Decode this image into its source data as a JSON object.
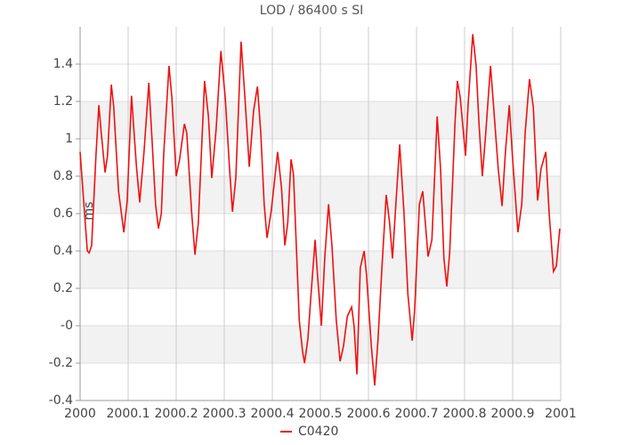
{
  "chart_data": {
    "type": "line",
    "title": "LOD / 86400 s SI",
    "y_label": "ms",
    "x": [
      2000.0,
      2000.015,
      2000.019,
      2000.024,
      2000.033,
      2000.039,
      2000.044,
      2000.052,
      2000.057,
      2000.065,
      2000.07,
      2000.08,
      2000.091,
      2000.098,
      2000.107,
      2000.117,
      2000.124,
      2000.133,
      2000.143,
      2000.15,
      2000.157,
      2000.163,
      2000.169,
      2000.174,
      2000.185,
      2000.191,
      2000.2,
      2000.207,
      2000.217,
      2000.222,
      2000.232,
      2000.239,
      2000.246,
      2000.259,
      2000.267,
      2000.274,
      2000.283,
      2000.293,
      2000.302,
      2000.311,
      2000.317,
      2000.324,
      2000.335,
      2000.343,
      2000.352,
      2000.361,
      2000.369,
      2000.376,
      2000.383,
      2000.389,
      2000.398,
      2000.411,
      2000.419,
      2000.426,
      2000.432,
      2000.439,
      2000.444,
      2000.456,
      2000.463,
      2000.467,
      2000.474,
      2000.48,
      2000.489,
      2000.494,
      2000.502,
      2000.509,
      2000.517,
      2000.524,
      2000.533,
      2000.541,
      2000.548,
      2000.556,
      2000.565,
      2000.57,
      2000.576,
      2000.583,
      2000.591,
      2000.596,
      2000.606,
      2000.613,
      2000.62,
      2000.628,
      2000.637,
      2000.644,
      2000.65,
      2000.657,
      2000.665,
      2000.674,
      2000.682,
      2000.691,
      2000.696,
      2000.706,
      2000.713,
      2000.719,
      2000.724,
      2000.732,
      2000.743,
      2000.75,
      2000.757,
      2000.763,
      2000.769,
      2000.78,
      2000.785,
      2000.791,
      2000.802,
      2000.807,
      2000.817,
      2000.824,
      2000.83,
      2000.837,
      2000.844,
      2000.854,
      2000.859,
      2000.87,
      2000.878,
      2000.885,
      2000.893,
      2000.9,
      2000.911,
      2000.919,
      2000.926,
      2000.935,
      2000.943,
      2000.952,
      2000.959,
      2000.969,
      2000.976,
      2000.985,
      2000.991,
      2000.998
    ],
    "series": [
      {
        "name": "C0420",
        "color": "#ee1111",
        "values": [
          0.93,
          0.4,
          0.39,
          0.43,
          0.91,
          1.18,
          1.03,
          0.82,
          0.91,
          1.29,
          1.17,
          0.72,
          0.5,
          0.67,
          1.23,
          0.86,
          0.66,
          0.93,
          1.3,
          0.98,
          0.65,
          0.52,
          0.6,
          0.92,
          1.39,
          1.22,
          0.8,
          0.89,
          1.08,
          1.03,
          0.61,
          0.38,
          0.55,
          1.31,
          1.12,
          0.79,
          1.05,
          1.47,
          1.22,
          0.84,
          0.61,
          0.79,
          1.52,
          1.22,
          0.85,
          1.15,
          1.28,
          1.03,
          0.65,
          0.47,
          0.62,
          0.93,
          0.74,
          0.43,
          0.55,
          0.89,
          0.81,
          0.03,
          -0.14,
          -0.2,
          -0.07,
          0.15,
          0.46,
          0.27,
          0.0,
          0.36,
          0.65,
          0.43,
          0.03,
          -0.19,
          -0.11,
          0.05,
          0.1,
          0.0,
          -0.26,
          0.31,
          0.4,
          0.27,
          -0.11,
          -0.32,
          -0.07,
          0.31,
          0.7,
          0.55,
          0.36,
          0.65,
          0.97,
          0.6,
          0.17,
          -0.08,
          0.08,
          0.65,
          0.72,
          0.53,
          0.37,
          0.46,
          1.12,
          0.84,
          0.36,
          0.21,
          0.39,
          1.08,
          1.31,
          1.22,
          0.91,
          1.17,
          1.56,
          1.39,
          1.08,
          0.8,
          1.03,
          1.39,
          1.22,
          0.84,
          0.64,
          0.93,
          1.18,
          0.89,
          0.5,
          0.65,
          1.03,
          1.32,
          1.17,
          0.67,
          0.84,
          0.93,
          0.6,
          0.29,
          0.32,
          0.52
        ]
      }
    ],
    "xlim": [
      2000,
      2001
    ],
    "xticks": [
      2000,
      2000.1,
      2000.2,
      2000.3,
      2000.4,
      2000.5,
      2000.6,
      2000.7,
      2000.8,
      2000.9,
      2001
    ],
    "ylim": [
      -0.4,
      1.6
    ],
    "yticks": [
      -0.4,
      -0.2,
      {
        "value": 0,
        "label": "-0"
      },
      0.2,
      0.4,
      0.6,
      0.8,
      1,
      1.2,
      1.4
    ],
    "grid": true,
    "legend": "bottom"
  }
}
